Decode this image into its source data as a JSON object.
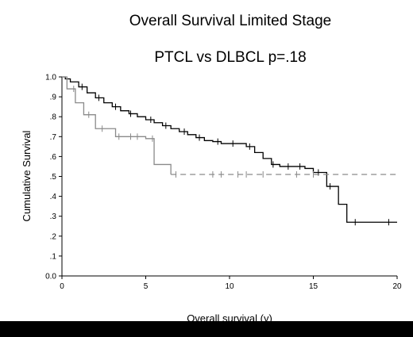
{
  "chart_data": {
    "type": "line",
    "title": "Overall Survival Limited Stage",
    "subtitle": "PTCL vs DLBCL    p=.18",
    "xlabel": "Overall survival (y)",
    "ylabel": "Cumulative Survival",
    "xlim": [
      0,
      20
    ],
    "ylim": [
      0,
      1.0
    ],
    "x_ticks": [
      "0",
      "5",
      "10",
      "15",
      "20"
    ],
    "y_ticks": [
      "0.0",
      ".1",
      ".2",
      ".3",
      ".4",
      ".5",
      ".6",
      ".7",
      ".8",
      ".9",
      "1.0"
    ],
    "grid": false,
    "series": [
      {
        "color": "#000000",
        "style": "solid",
        "points": [
          [
            0,
            1.0
          ],
          [
            0.2,
            0.99
          ],
          [
            0.5,
            0.975
          ],
          [
            1,
            0.95
          ],
          [
            1.5,
            0.92
          ],
          [
            2,
            0.895
          ],
          [
            2.5,
            0.87
          ],
          [
            3,
            0.85
          ],
          [
            3.5,
            0.83
          ],
          [
            4,
            0.815
          ],
          [
            4.5,
            0.8
          ],
          [
            5,
            0.785
          ],
          [
            5.5,
            0.77
          ],
          [
            6,
            0.755
          ],
          [
            6.5,
            0.74
          ],
          [
            7,
            0.725
          ],
          [
            7.5,
            0.71
          ],
          [
            8,
            0.695
          ],
          [
            8.5,
            0.68
          ],
          [
            9,
            0.675
          ],
          [
            9.5,
            0.665
          ],
          [
            10,
            0.665
          ],
          [
            11,
            0.65
          ],
          [
            11.5,
            0.62
          ],
          [
            12,
            0.59
          ],
          [
            12.5,
            0.56
          ],
          [
            13,
            0.55
          ],
          [
            14.5,
            0.54
          ],
          [
            15,
            0.52
          ],
          [
            15.5,
            0.52
          ],
          [
            15.8,
            0.45
          ],
          [
            16.5,
            0.36
          ],
          [
            17,
            0.27
          ],
          [
            20,
            0.27
          ]
        ],
        "censored_x": [
          1.2,
          2.2,
          3.2,
          4.1,
          5.3,
          6.2,
          7.3,
          8.2,
          9.3,
          10.2,
          11.2,
          12.6,
          13.5,
          14.2,
          15.3,
          16,
          17.5,
          19.5
        ]
      },
      {
        "color": "#8a8a8a",
        "style": "dashed-tail",
        "points": [
          [
            0,
            1.0
          ],
          [
            0.3,
            0.94
          ],
          [
            0.8,
            0.87
          ],
          [
            1.3,
            0.81
          ],
          [
            2,
            0.74
          ],
          [
            3.2,
            0.7
          ],
          [
            5,
            0.69
          ],
          [
            5.5,
            0.56
          ],
          [
            6.2,
            0.56
          ],
          [
            6.5,
            0.51
          ],
          [
            20,
            0.51
          ]
        ],
        "censored_x": [
          0.7,
          1.6,
          2.4,
          3.4,
          4.1,
          4.5,
          5.4,
          6.8,
          9.0,
          9.5,
          10.5,
          11.0,
          12.0,
          14.0,
          15.0
        ]
      }
    ]
  }
}
